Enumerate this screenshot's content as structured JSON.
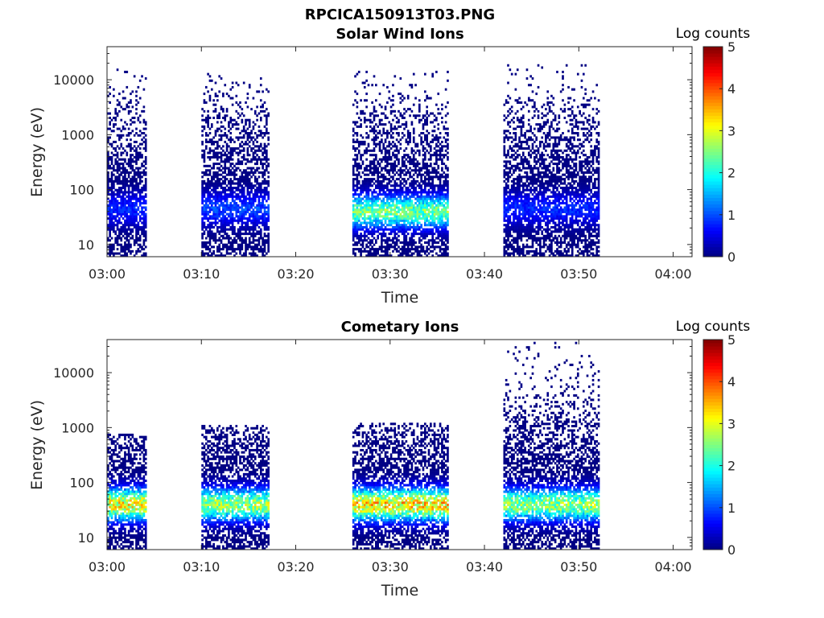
{
  "figure": {
    "title": "RPCICA150913T03.PNG"
  },
  "chart_data": [
    {
      "type": "heatmap",
      "title": "Solar Wind Ions",
      "xlabel": "Time",
      "ylabel": "Energy (eV)",
      "x_range": [
        "03:00",
        "04:02"
      ],
      "x_ticks": [
        "03:00",
        "03:10",
        "03:20",
        "03:30",
        "03:40",
        "03:50",
        "04:00"
      ],
      "y_scale": "log",
      "y_range": [
        6,
        40000
      ],
      "y_ticks": [
        "10",
        "100",
        "1000",
        "10000"
      ],
      "grid": false,
      "colorbar": {
        "label": "Log counts",
        "min": 0,
        "max": 5,
        "ticks": [
          "0",
          "1",
          "2",
          "3",
          "4",
          "5"
        ],
        "colormap": "jet"
      },
      "bursts": [
        {
          "start": "03:00",
          "end": "03:04",
          "e_min": 6,
          "e_max": 16000,
          "peak_e": 45,
          "peak_log_counts": 1.0
        },
        {
          "start": "03:10",
          "end": "03:17",
          "e_min": 6,
          "e_max": 13000,
          "peak_e": 45,
          "peak_log_counts": 1.2
        },
        {
          "start": "03:26",
          "end": "03:36",
          "e_min": 6,
          "e_max": 15000,
          "peak_e": 40,
          "peak_log_counts": 3.0
        },
        {
          "start": "03:42",
          "end": "03:52",
          "e_min": 6,
          "e_max": 20000,
          "peak_e": 45,
          "peak_log_counts": 1.0
        }
      ]
    },
    {
      "type": "heatmap",
      "title": "Cometary Ions",
      "xlabel": "Time",
      "ylabel": "Energy (eV)",
      "x_range": [
        "03:00",
        "04:02"
      ],
      "x_ticks": [
        "03:00",
        "03:10",
        "03:20",
        "03:30",
        "03:40",
        "03:50",
        "04:00"
      ],
      "y_scale": "log",
      "y_range": [
        6,
        40000
      ],
      "y_ticks": [
        "10",
        "100",
        "1000",
        "10000"
      ],
      "grid": false,
      "colorbar": {
        "label": "Log counts",
        "min": 0,
        "max": 5,
        "ticks": [
          "0",
          "1",
          "2",
          "3",
          "4",
          "5"
        ],
        "colormap": "jet"
      },
      "bursts": [
        {
          "start": "03:00",
          "end": "03:04",
          "e_min": 6,
          "e_max": 800,
          "peak_e": 40,
          "peak_log_counts": 3.8
        },
        {
          "start": "03:10",
          "end": "03:17",
          "e_min": 6,
          "e_max": 1100,
          "peak_e": 40,
          "peak_log_counts": 3.3
        },
        {
          "start": "03:26",
          "end": "03:36",
          "e_min": 6,
          "e_max": 1200,
          "peak_e": 40,
          "peak_log_counts": 4.0
        },
        {
          "start": "03:42",
          "end": "03:52",
          "e_min": 6,
          "e_max": 35000,
          "peak_e": 40,
          "peak_log_counts": 3.2
        }
      ]
    }
  ]
}
